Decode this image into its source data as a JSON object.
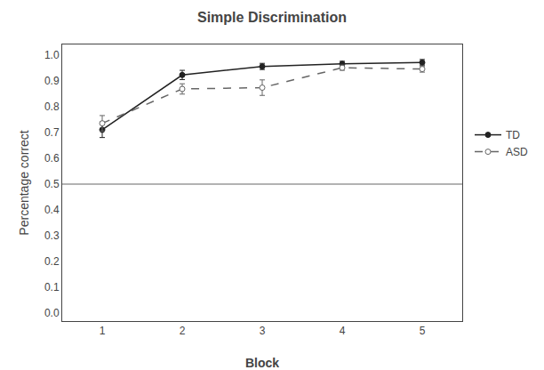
{
  "chart_data": {
    "type": "line",
    "title": "Simple Discrimination",
    "xlabel": "Block",
    "ylabel": "Percentage correct",
    "x": [
      1,
      2,
      3,
      4,
      5
    ],
    "series": [
      {
        "name": "TD",
        "color": "#222222",
        "marker": "circle",
        "line_style": "solid",
        "values": [
          0.71,
          0.922,
          0.955,
          0.965,
          0.97
        ],
        "errors": [
          0.03,
          0.018,
          0.012,
          0.01,
          0.012
        ]
      },
      {
        "name": "ASD",
        "color": "#666666",
        "marker": "circle-open",
        "line_style": "dash",
        "values": [
          0.735,
          0.868,
          0.873,
          0.95,
          0.945
        ],
        "errors": [
          0.03,
          0.02,
          0.03,
          0.01,
          0.012
        ]
      }
    ],
    "hlines": [
      {
        "value": 0.5,
        "color": "#999999"
      }
    ],
    "xlim": [
      0.5,
      5.5
    ],
    "xticks": [
      1,
      2,
      3,
      4,
      5
    ],
    "ylim": [
      -0.03,
      1.04
    ],
    "yticks": [
      {
        "value": 0.0,
        "label": "0.0"
      },
      0.1,
      0.2,
      0.3,
      0.4,
      0.5,
      0.6,
      0.7,
      0.8,
      0.9,
      {
        "value": 1.0,
        "label": "1.0"
      }
    ],
    "grid": false,
    "legend": "right"
  }
}
